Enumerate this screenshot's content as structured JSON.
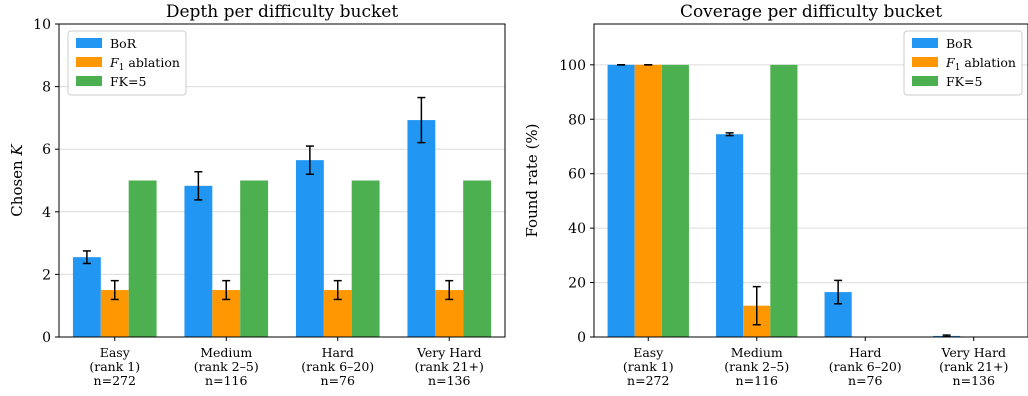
{
  "colors": {
    "BoR": "#2196f3",
    "F1": "#ff9800",
    "FK": "#4caf50"
  },
  "legend": [
    {
      "key": "BoR",
      "label": "BoR"
    },
    {
      "key": "F1",
      "label": "F₁ ablation"
    },
    {
      "key": "FK",
      "label": "FK=5"
    }
  ],
  "chart_data": [
    {
      "type": "bar",
      "title": "Depth per difficulty bucket",
      "xlabel": "",
      "ylabel": "Chosen K",
      "ylim": [
        0,
        10
      ],
      "yticks": [
        0,
        2,
        4,
        6,
        8,
        10
      ],
      "grid": "horizontal",
      "legend_position": "top-left",
      "categories": [
        [
          "Easy",
          "(rank 1)",
          "n=272"
        ],
        [
          "Medium",
          "(rank 2–5)",
          "n=116"
        ],
        [
          "Hard",
          "(rank 6–20)",
          "n=76"
        ],
        [
          "Very Hard",
          "(rank 21+)",
          "n=136"
        ]
      ],
      "series": [
        {
          "name": "BoR",
          "values": [
            2.55,
            4.83,
            5.65,
            6.93
          ],
          "err": [
            0.2,
            0.45,
            0.45,
            0.72
          ]
        },
        {
          "name": "F₁ ablation",
          "values": [
            1.5,
            1.5,
            1.5,
            1.5
          ],
          "err": [
            0.3,
            0.3,
            0.3,
            0.3
          ]
        },
        {
          "name": "FK=5",
          "values": [
            5,
            5,
            5,
            5
          ],
          "err": [
            null,
            null,
            null,
            null
          ]
        }
      ]
    },
    {
      "type": "bar",
      "title": "Coverage per difficulty bucket",
      "xlabel": "",
      "ylabel": "Found rate (%)",
      "ylim": [
        0,
        115
      ],
      "yticks": [
        0,
        20,
        40,
        60,
        80,
        100
      ],
      "grid": "horizontal",
      "legend_position": "top-right",
      "categories": [
        [
          "Easy",
          "(rank 1)",
          "n=272"
        ],
        [
          "Medium",
          "(rank 2–5)",
          "n=116"
        ],
        [
          "Hard",
          "(rank 6–20)",
          "n=76"
        ],
        [
          "Very Hard",
          "(rank 21+)",
          "n=136"
        ]
      ],
      "series": [
        {
          "name": "BoR",
          "values": [
            100,
            74.5,
            16.5,
            0.4
          ],
          "err": [
            0,
            0.5,
            4.3,
            0.3
          ]
        },
        {
          "name": "F₁ ablation",
          "values": [
            100,
            11.5,
            0,
            0
          ],
          "err": [
            0,
            7,
            null,
            null
          ]
        },
        {
          "name": "FK=5",
          "values": [
            100,
            100,
            0,
            0
          ],
          "err": [
            null,
            null,
            null,
            null
          ]
        }
      ]
    }
  ]
}
